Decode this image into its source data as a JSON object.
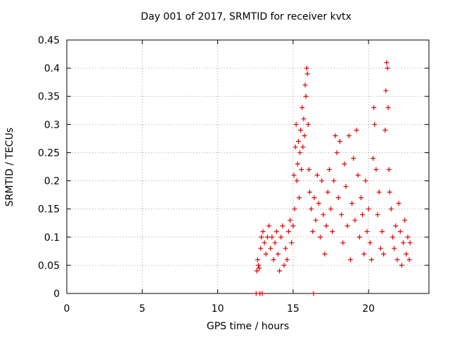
{
  "chart_data": {
    "type": "scatter",
    "title": "Day 001 of 2017, SRMTID for receiver kvtx",
    "xlabel": "GPS time / hours",
    "ylabel": "SRMTID / TECUs",
    "xlim": [
      0,
      24
    ],
    "ylim": [
      0,
      0.45
    ],
    "grid": true,
    "marker": "+",
    "color": "#e00000",
    "xticks": [
      "0",
      "5",
      "10",
      "15",
      "20"
    ],
    "yticks": [
      "0",
      "0.05",
      "0.1",
      "0.15",
      "0.2",
      "0.25",
      "0.3",
      "0.35",
      "0.4",
      "0.45"
    ],
    "series": [
      {
        "name": "SRMTID",
        "points": [
          [
            12.55,
            0.0
          ],
          [
            12.8,
            0.0
          ],
          [
            12.95,
            0.0
          ],
          [
            16.35,
            0.0
          ],
          [
            12.6,
            0.04
          ],
          [
            12.65,
            0.06
          ],
          [
            12.7,
            0.05
          ],
          [
            12.75,
            0.045
          ],
          [
            12.85,
            0.08
          ],
          [
            12.9,
            0.1
          ],
          [
            13.0,
            0.11
          ],
          [
            13.1,
            0.09
          ],
          [
            13.2,
            0.07
          ],
          [
            13.3,
            0.1
          ],
          [
            13.4,
            0.12
          ],
          [
            13.5,
            0.08
          ],
          [
            13.6,
            0.1
          ],
          [
            13.7,
            0.06
          ],
          [
            13.8,
            0.09
          ],
          [
            13.9,
            0.11
          ],
          [
            14.0,
            0.07
          ],
          [
            14.1,
            0.04
          ],
          [
            14.2,
            0.1
          ],
          [
            14.3,
            0.12
          ],
          [
            14.4,
            0.05
          ],
          [
            14.5,
            0.08
          ],
          [
            14.6,
            0.06
          ],
          [
            14.7,
            0.11
          ],
          [
            14.8,
            0.13
          ],
          [
            14.9,
            0.09
          ],
          [
            15.0,
            0.12
          ],
          [
            15.05,
            0.21
          ],
          [
            15.1,
            0.15
          ],
          [
            15.15,
            0.26
          ],
          [
            15.2,
            0.3
          ],
          [
            15.25,
            0.2
          ],
          [
            15.3,
            0.23
          ],
          [
            15.35,
            0.27
          ],
          [
            15.4,
            0.17
          ],
          [
            15.45,
            0.25
          ],
          [
            15.5,
            0.29
          ],
          [
            15.55,
            0.22
          ],
          [
            15.6,
            0.33
          ],
          [
            15.65,
            0.26
          ],
          [
            15.7,
            0.31
          ],
          [
            15.75,
            0.28
          ],
          [
            15.8,
            0.37
          ],
          [
            15.85,
            0.35
          ],
          [
            15.9,
            0.4
          ],
          [
            15.95,
            0.39
          ],
          [
            16.0,
            0.3
          ],
          [
            16.05,
            0.22
          ],
          [
            16.1,
            0.18
          ],
          [
            16.2,
            0.15
          ],
          [
            16.3,
            0.11
          ],
          [
            16.4,
            0.17
          ],
          [
            16.5,
            0.13
          ],
          [
            16.6,
            0.21
          ],
          [
            16.7,
            0.16
          ],
          [
            16.8,
            0.1
          ],
          [
            16.9,
            0.2
          ],
          [
            17.0,
            0.14
          ],
          [
            17.1,
            0.07
          ],
          [
            17.2,
            0.12
          ],
          [
            17.3,
            0.18
          ],
          [
            17.4,
            0.22
          ],
          [
            17.5,
            0.15
          ],
          [
            17.6,
            0.11
          ],
          [
            17.7,
            0.2
          ],
          [
            17.8,
            0.28
          ],
          [
            17.9,
            0.25
          ],
          [
            18.0,
            0.17
          ],
          [
            18.1,
            0.27
          ],
          [
            18.2,
            0.14
          ],
          [
            18.3,
            0.09
          ],
          [
            18.4,
            0.23
          ],
          [
            18.5,
            0.19
          ],
          [
            18.6,
            0.12
          ],
          [
            18.7,
            0.28
          ],
          [
            18.8,
            0.06
          ],
          [
            18.9,
            0.16
          ],
          [
            19.0,
            0.24
          ],
          [
            19.1,
            0.13
          ],
          [
            19.2,
            0.29
          ],
          [
            19.3,
            0.21
          ],
          [
            19.4,
            0.1
          ],
          [
            19.5,
            0.17
          ],
          [
            19.6,
            0.14
          ],
          [
            19.7,
            0.07
          ],
          [
            19.8,
            0.2
          ],
          [
            19.9,
            0.11
          ],
          [
            20.0,
            0.15
          ],
          [
            20.1,
            0.09
          ],
          [
            20.2,
            0.06
          ],
          [
            20.3,
            0.24
          ],
          [
            20.35,
            0.33
          ],
          [
            20.4,
            0.3
          ],
          [
            20.5,
            0.22
          ],
          [
            20.6,
            0.14
          ],
          [
            20.7,
            0.18
          ],
          [
            20.8,
            0.08
          ],
          [
            20.9,
            0.11
          ],
          [
            21.0,
            0.07
          ],
          [
            21.1,
            0.29
          ],
          [
            21.15,
            0.36
          ],
          [
            21.2,
            0.41
          ],
          [
            21.25,
            0.4
          ],
          [
            21.3,
            0.33
          ],
          [
            21.35,
            0.22
          ],
          [
            21.4,
            0.18
          ],
          [
            21.5,
            0.15
          ],
          [
            21.6,
            0.1
          ],
          [
            21.7,
            0.08
          ],
          [
            21.8,
            0.12
          ],
          [
            21.9,
            0.06
          ],
          [
            22.0,
            0.16
          ],
          [
            22.1,
            0.11
          ],
          [
            22.2,
            0.05
          ],
          [
            22.3,
            0.09
          ],
          [
            22.4,
            0.13
          ],
          [
            22.5,
            0.07
          ],
          [
            22.6,
            0.1
          ],
          [
            22.7,
            0.06
          ],
          [
            22.75,
            0.09
          ]
        ]
      }
    ]
  }
}
